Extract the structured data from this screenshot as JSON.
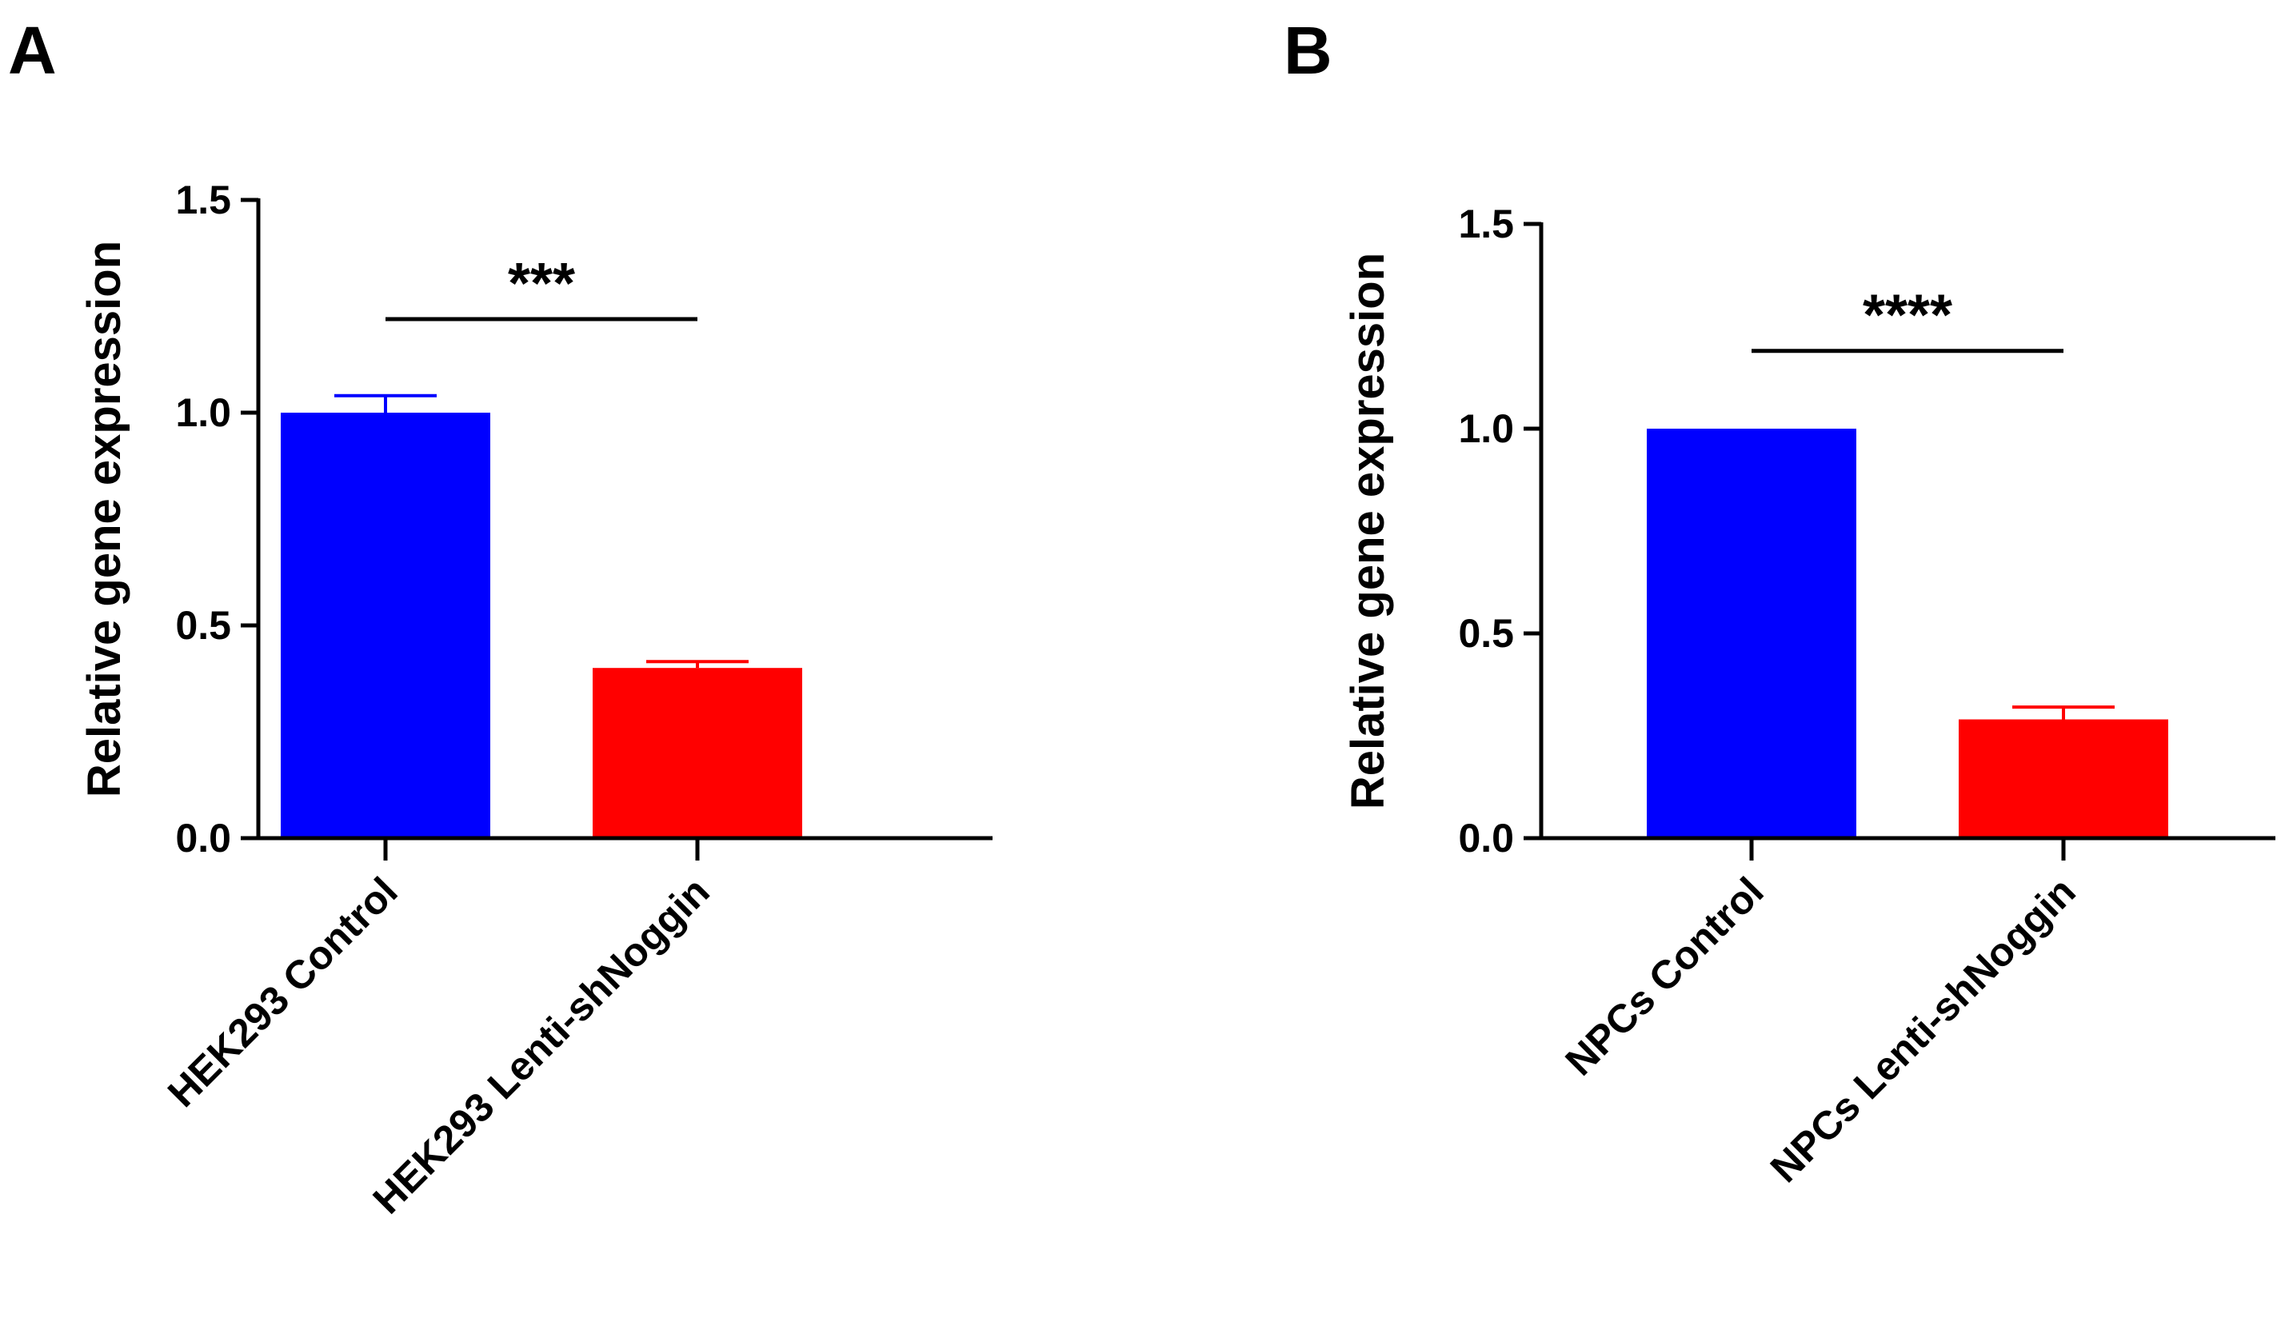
{
  "figure": {
    "panels_note": "two bar chart panels A and B"
  },
  "chart_data": [
    {
      "panel_label": "A",
      "type": "bar",
      "title": "",
      "xlabel": "",
      "ylabel": "Relative gene expression",
      "ylim": [
        0,
        1.5
      ],
      "yticks": [
        0.0,
        0.5,
        1.0,
        1.5
      ],
      "ytick_labels": [
        "0.0",
        "0.5",
        "1.0",
        "1.5"
      ],
      "categories": [
        "HEK293 Control",
        "HEK293 Lenti-shNoggin"
      ],
      "values": [
        1.0,
        0.4
      ],
      "errors": [
        0.04,
        0.015
      ],
      "colors": [
        "#0000ff",
        "#ff0000"
      ],
      "significance": {
        "from": 0,
        "to": 1,
        "label": "***",
        "y": 1.22
      }
    },
    {
      "panel_label": "B",
      "type": "bar",
      "title": "",
      "xlabel": "",
      "ylabel": "Relative gene expression",
      "ylim": [
        0,
        1.5
      ],
      "yticks": [
        0.0,
        0.5,
        1.0,
        1.5
      ],
      "ytick_labels": [
        "0.0",
        "0.5",
        "1.0",
        "1.5"
      ],
      "categories": [
        "NPCs Control",
        "NPCs Lenti-shNoggin"
      ],
      "values": [
        1.0,
        0.29
      ],
      "errors": [
        0.0,
        0.03
      ],
      "colors": [
        "#0000ff",
        "#ff0000"
      ],
      "significance": {
        "from": 0,
        "to": 1,
        "label": "****",
        "y": 1.19
      }
    }
  ]
}
